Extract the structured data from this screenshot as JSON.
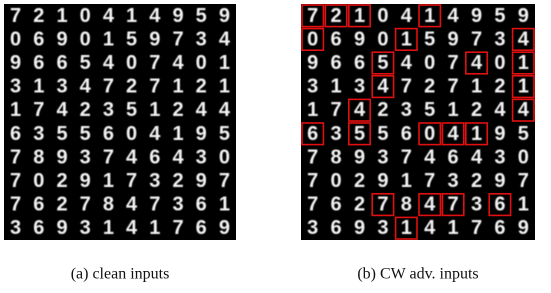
{
  "panels": [
    {
      "caption": "(a) clean inputs",
      "digits": [
        [
          7,
          2,
          1,
          0,
          4,
          1,
          4,
          9,
          5,
          9
        ],
        [
          0,
          6,
          9,
          0,
          1,
          5,
          9,
          7,
          3,
          4
        ],
        [
          9,
          6,
          6,
          5,
          4,
          0,
          7,
          4,
          0,
          1
        ],
        [
          3,
          1,
          3,
          4,
          7,
          2,
          7,
          1,
          2,
          1
        ],
        [
          1,
          7,
          4,
          2,
          3,
          5,
          1,
          2,
          4,
          4
        ],
        [
          6,
          3,
          5,
          5,
          6,
          0,
          4,
          1,
          9,
          5
        ],
        [
          7,
          8,
          9,
          3,
          7,
          4,
          6,
          4,
          3,
          0
        ],
        [
          7,
          0,
          2,
          9,
          1,
          7,
          3,
          2,
          9,
          7
        ],
        [
          7,
          6,
          2,
          7,
          8,
          4,
          7,
          3,
          6,
          1
        ],
        [
          3,
          6,
          9,
          3,
          1,
          4,
          1,
          7,
          6,
          9
        ]
      ],
      "highlighted": []
    },
    {
      "caption": "(b) CW adv. inputs",
      "digits": [
        [
          7,
          2,
          1,
          0,
          4,
          1,
          4,
          9,
          5,
          9
        ],
        [
          0,
          6,
          9,
          0,
          1,
          5,
          9,
          7,
          3,
          4
        ],
        [
          9,
          6,
          6,
          5,
          4,
          0,
          7,
          4,
          0,
          1
        ],
        [
          3,
          1,
          3,
          4,
          7,
          2,
          7,
          1,
          2,
          1
        ],
        [
          1,
          7,
          4,
          2,
          3,
          5,
          1,
          2,
          4,
          4
        ],
        [
          6,
          3,
          5,
          5,
          6,
          0,
          4,
          1,
          9,
          5
        ],
        [
          7,
          8,
          9,
          3,
          7,
          4,
          6,
          4,
          3,
          0
        ],
        [
          7,
          0,
          2,
          9,
          1,
          7,
          3,
          2,
          9,
          7
        ],
        [
          7,
          6,
          2,
          7,
          8,
          4,
          7,
          3,
          6,
          1
        ],
        [
          3,
          6,
          9,
          3,
          1,
          4,
          1,
          7,
          6,
          9
        ]
      ],
      "highlighted": [
        [
          0,
          0
        ],
        [
          0,
          1
        ],
        [
          0,
          2
        ],
        [
          0,
          5
        ],
        [
          1,
          0
        ],
        [
          1,
          4
        ],
        [
          1,
          9
        ],
        [
          2,
          3
        ],
        [
          2,
          7
        ],
        [
          2,
          9
        ],
        [
          3,
          3
        ],
        [
          3,
          9
        ],
        [
          4,
          2
        ],
        [
          4,
          9
        ],
        [
          5,
          0
        ],
        [
          5,
          2
        ],
        [
          5,
          5
        ],
        [
          5,
          6
        ],
        [
          5,
          7
        ],
        [
          8,
          3
        ],
        [
          8,
          5
        ],
        [
          8,
          6
        ],
        [
          8,
          8
        ],
        [
          9,
          4
        ]
      ],
      "highlight_color": "#e01010"
    }
  ]
}
